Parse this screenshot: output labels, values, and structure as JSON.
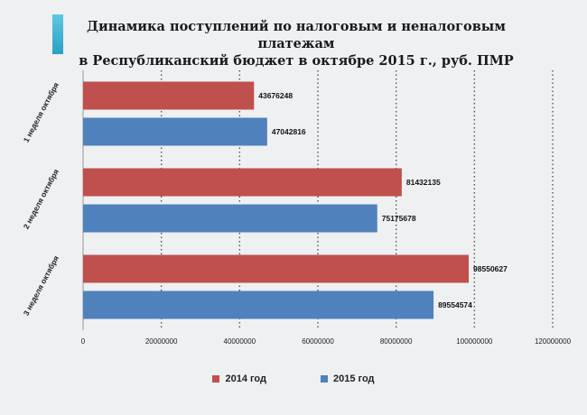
{
  "title_line1": "Динамика поступлений по налоговым и неналоговым платежам",
  "title_line2": "в Республиканский бюджет в октябре 2015 г., руб. ПМР",
  "chart_data": {
    "type": "bar",
    "orientation": "horizontal",
    "categories": [
      "1 неделя октября",
      "2 неделя октября",
      "3 неделя октября"
    ],
    "series": [
      {
        "name": "2014 год",
        "color": "#c0504d",
        "values": [
          43676248,
          81432135,
          98550627
        ]
      },
      {
        "name": "2015 год",
        "color": "#4f81bd",
        "values": [
          47042816,
          75175678,
          89554574
        ]
      }
    ],
    "xlim": [
      0,
      120000000
    ],
    "xticks": [
      "0",
      "20000000",
      "40000000",
      "60000000",
      "80000000",
      "100000000",
      "120000000"
    ],
    "grid": "vertical-dotted",
    "legend": "bottom-center",
    "data_labels": true
  }
}
